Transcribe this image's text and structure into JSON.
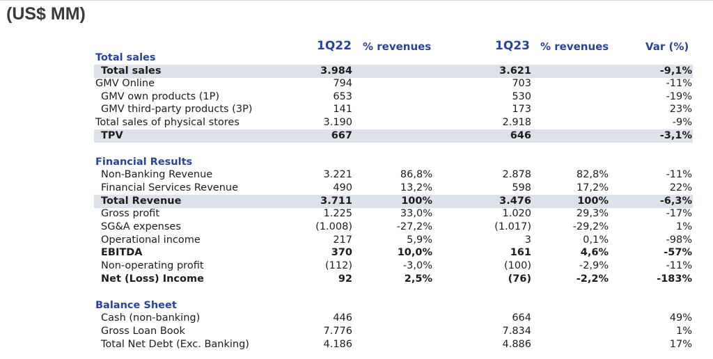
{
  "title": "(US$ MM)",
  "headers": {
    "q1": "1Q22",
    "pct1": "% revenues",
    "q2": "1Q23",
    "pct2": "% revenues",
    "var": "Var (%)"
  },
  "rows": [
    {
      "label": "Total sales",
      "kind": "section",
      "v1": "",
      "p1": "",
      "v2": "",
      "p2": "",
      "var": ""
    },
    {
      "label": "Total sales",
      "kind": "highlight",
      "v1": "3.984",
      "p1": "",
      "v2": "3.621",
      "p2": "",
      "var": "-9,1%"
    },
    {
      "label": "GMV Online",
      "kind": "plain",
      "v1": "794",
      "p1": "",
      "v2": "703",
      "p2": "",
      "var": "-11%"
    },
    {
      "label": "GMV own products (1P)",
      "kind": "indent",
      "v1": "653",
      "p1": "",
      "v2": "530",
      "p2": "",
      "var": "-19%"
    },
    {
      "label": "GMV third-party products (3P)",
      "kind": "indent",
      "v1": "141",
      "p1": "",
      "v2": "173",
      "p2": "",
      "var": "23%"
    },
    {
      "label": "Total sales of physical stores",
      "kind": "plain",
      "v1": "3.190",
      "p1": "",
      "v2": "2.918",
      "p2": "",
      "var": "-9%"
    },
    {
      "label": "TPV",
      "kind": "highlight",
      "v1": "667",
      "p1": "",
      "v2": "646",
      "p2": "",
      "var": "-3,1%"
    },
    {
      "label": "Financial Results",
      "kind": "section",
      "v1": "",
      "p1": "",
      "v2": "",
      "p2": "",
      "var": ""
    },
    {
      "label": "Non-Banking Revenue",
      "kind": "indent",
      "v1": "3.221",
      "p1": "86,8%",
      "v2": "2.878",
      "p2": "82,8%",
      "var": "-11%"
    },
    {
      "label": "Financial Services Revenue",
      "kind": "indent",
      "v1": "490",
      "p1": "13,2%",
      "v2": "598",
      "p2": "17,2%",
      "var": "22%"
    },
    {
      "label": "Total Revenue",
      "kind": "highlight",
      "v1": "3.711",
      "p1": "100%",
      "v2": "3.476",
      "p2": "100%",
      "var": "-6,3%"
    },
    {
      "label": "Gross profit",
      "kind": "indent",
      "v1": "1.225",
      "p1": "33,0%",
      "v2": "1.020",
      "p2": "29,3%",
      "var": "-17%"
    },
    {
      "label": "SG&A expenses",
      "kind": "indent",
      "v1": "(1.008)",
      "p1": "-27,2%",
      "v2": "(1.017)",
      "p2": "-29,2%",
      "var": "1%"
    },
    {
      "label": "Operational income",
      "kind": "indent",
      "v1": "217",
      "p1": "5,9%",
      "v2": "3",
      "p2": "0,1%",
      "var": "-98%"
    },
    {
      "label": "EBITDA",
      "kind": "bold",
      "v1": "370",
      "p1": "10,0%",
      "v2": "161",
      "p2": "4,6%",
      "var": "-57%"
    },
    {
      "label": "Non-operating profit",
      "kind": "indent",
      "v1": "(112)",
      "p1": "-3,0%",
      "v2": "(100)",
      "p2": "-2,9%",
      "var": "-11%"
    },
    {
      "label": "Net (Loss) Income",
      "kind": "bold",
      "v1": "92",
      "p1": "2,5%",
      "v2": "(76)",
      "p2": "-2,2%",
      "var": "-183%"
    },
    {
      "label": "Balance Sheet",
      "kind": "section",
      "v1": "",
      "p1": "",
      "v2": "",
      "p2": "",
      "var": ""
    },
    {
      "label": "Cash (non-banking)",
      "kind": "indent",
      "v1": "446",
      "p1": "",
      "v2": "664",
      "p2": "",
      "var": "49%"
    },
    {
      "label": "Gross Loan Book",
      "kind": "indent",
      "v1": "7.776",
      "p1": "",
      "v2": "7.834",
      "p2": "",
      "var": "1%"
    },
    {
      "label": "Total Net Debt (Exc. Banking)",
      "kind": "indent",
      "v1": "4.186",
      "p1": "",
      "v2": "4.886",
      "p2": "",
      "var": "17%"
    }
  ]
}
